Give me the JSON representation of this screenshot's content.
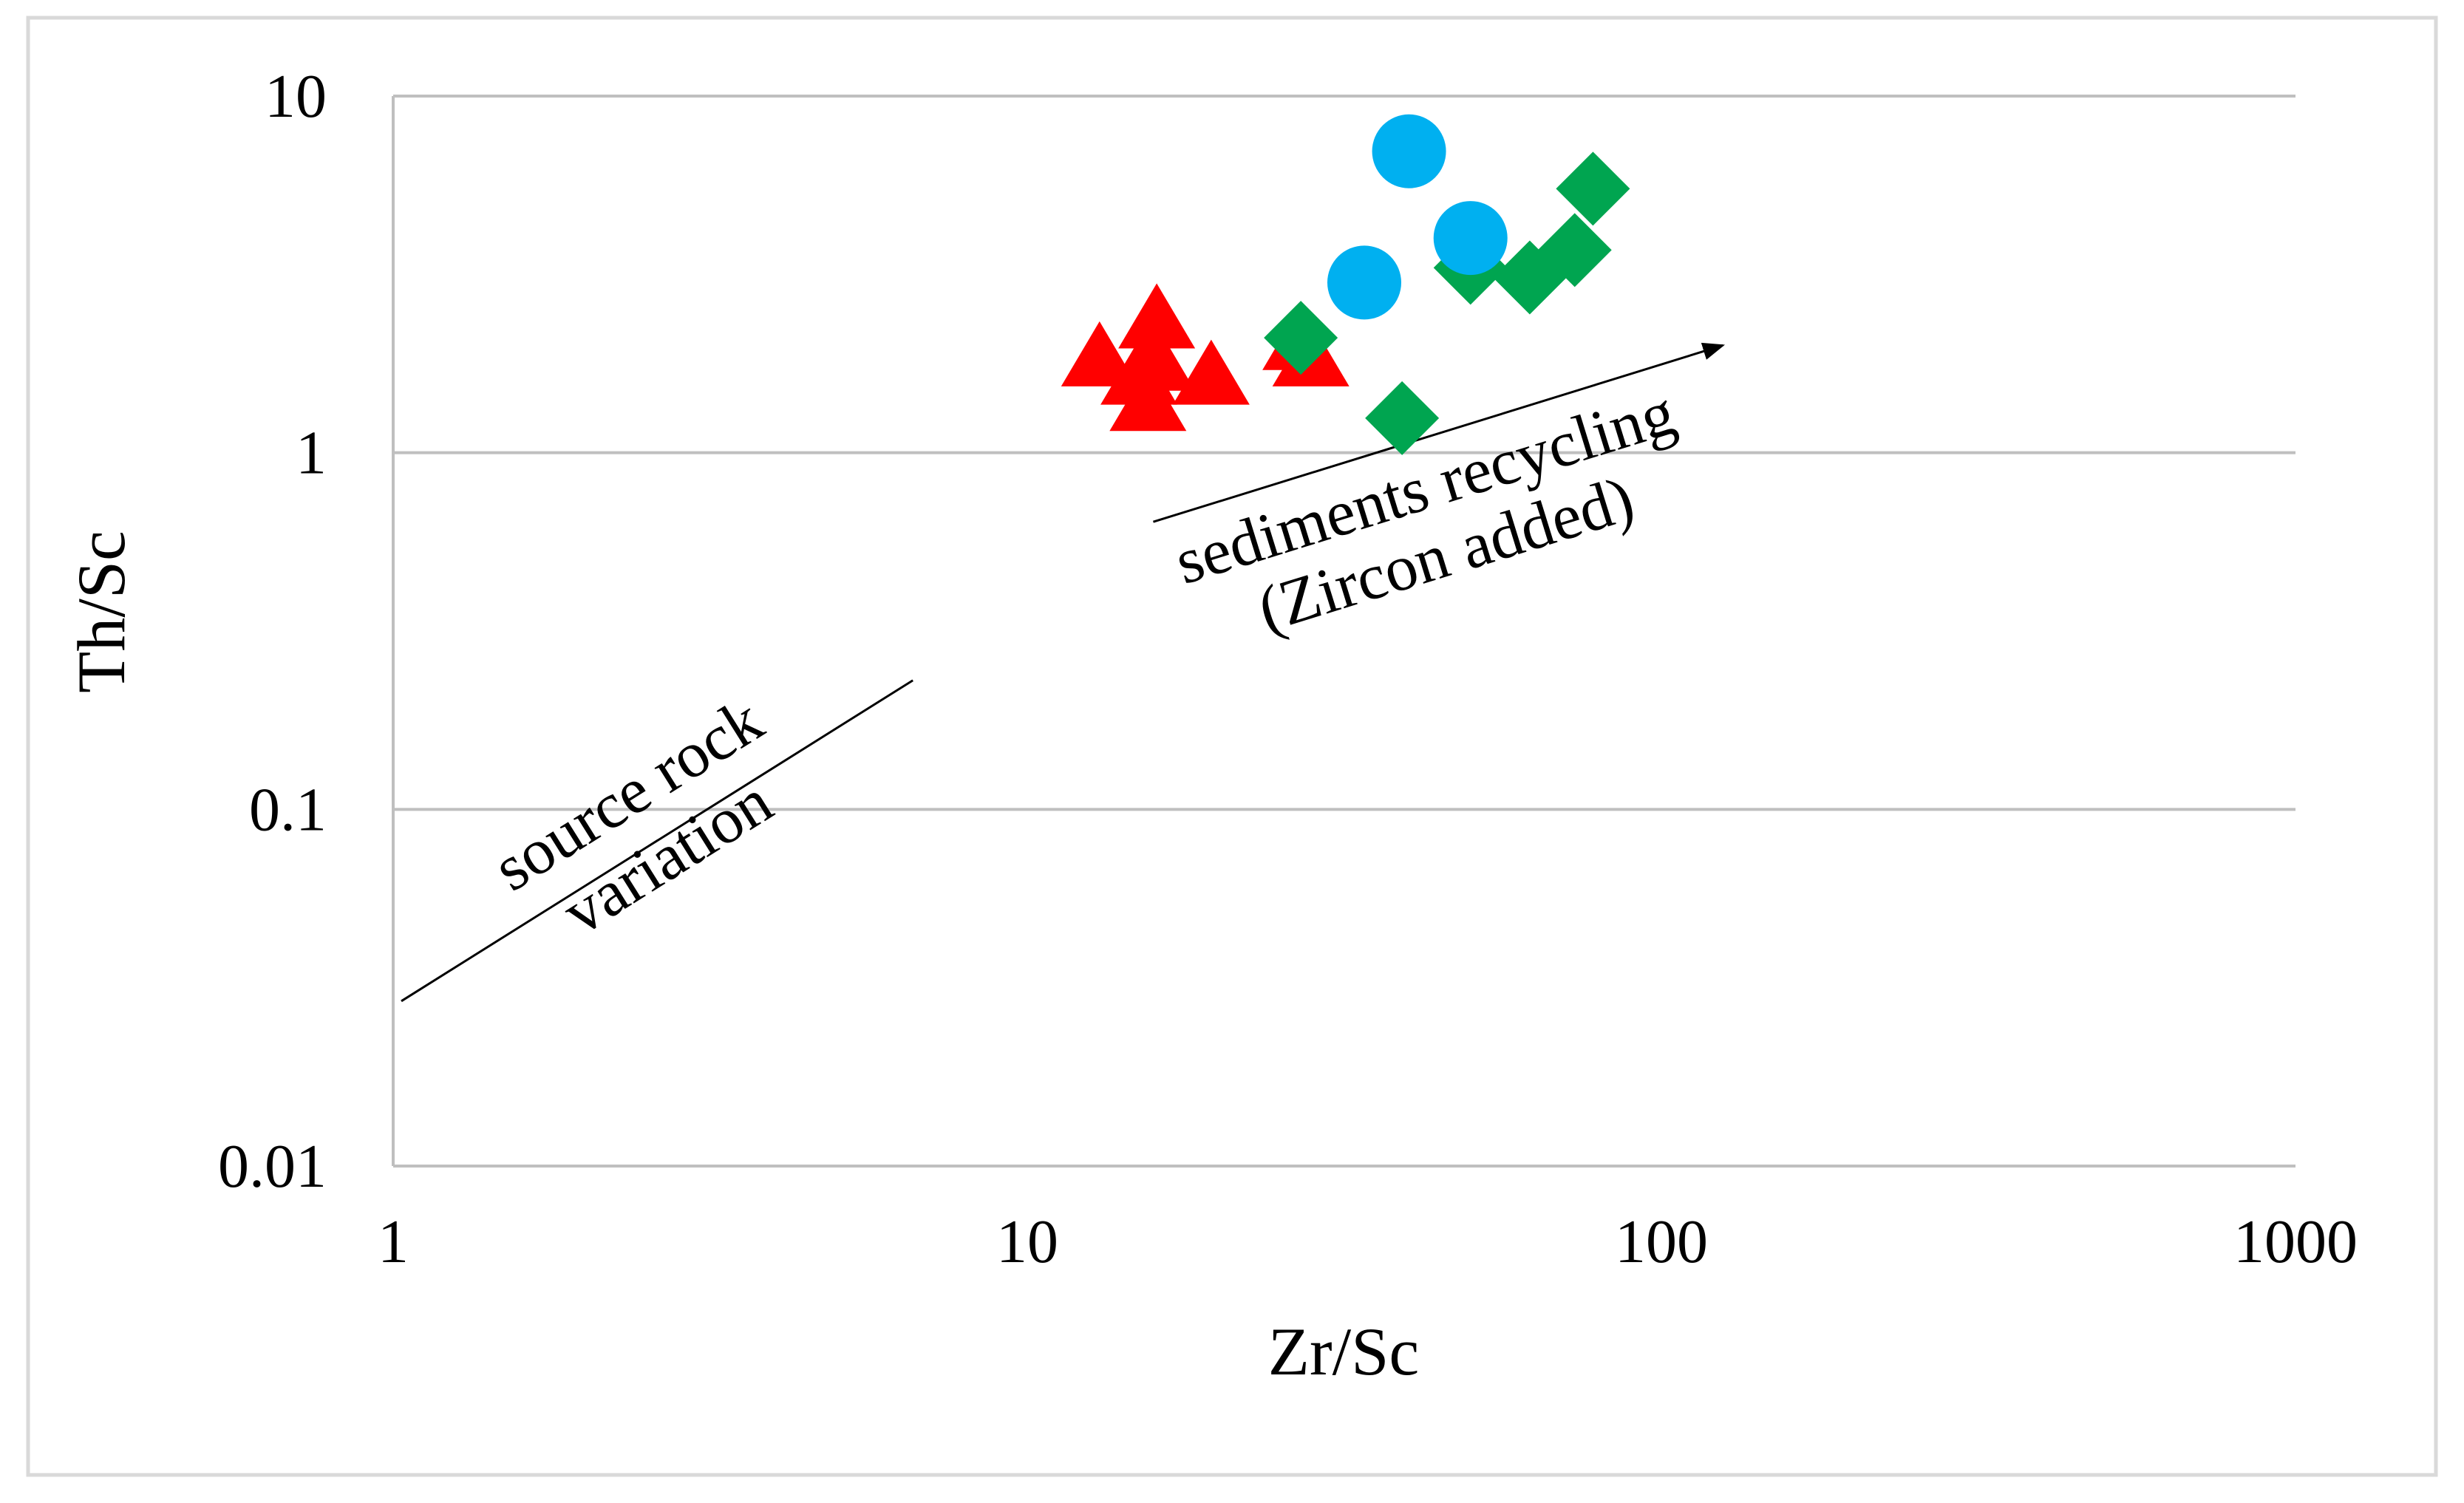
{
  "chart_data": {
    "type": "scatter",
    "title": "",
    "xlabel": "Zr/Sc",
    "ylabel": "Th/Sc",
    "xscale": "log",
    "yscale": "log",
    "xlim": [
      1,
      1000
    ],
    "ylim": [
      0.01,
      10
    ],
    "xticks": [
      1,
      10,
      100,
      1000
    ],
    "xtick_labels": [
      "1",
      "10",
      "100",
      "1000"
    ],
    "yticks": [
      0.01,
      0.1,
      1,
      10
    ],
    "ytick_labels": [
      "0.01",
      "0.1",
      "1",
      "10"
    ],
    "grid": "horizontal",
    "series": [
      {
        "name": "triangles",
        "marker": "triangle",
        "color": "#ff0000",
        "points": [
          {
            "x": 13,
            "y": 1.8
          },
          {
            "x": 15,
            "y": 1.6
          },
          {
            "x": 15.5,
            "y": 1.35
          },
          {
            "x": 16,
            "y": 1.75
          },
          {
            "x": 16,
            "y": 2.3
          },
          {
            "x": 19.5,
            "y": 1.6
          },
          {
            "x": 27,
            "y": 2.0
          },
          {
            "x": 28,
            "y": 1.8
          }
        ]
      },
      {
        "name": "diamonds",
        "marker": "diamond",
        "color": "#00a550",
        "points": [
          {
            "x": 27,
            "y": 2.1
          },
          {
            "x": 39,
            "y": 1.25
          },
          {
            "x": 50,
            "y": 3.3
          },
          {
            "x": 62,
            "y": 3.1
          },
          {
            "x": 73,
            "y": 3.7
          },
          {
            "x": 78,
            "y": 5.5
          }
        ]
      },
      {
        "name": "circles",
        "marker": "circle",
        "color": "#00b0f0",
        "points": [
          {
            "x": 34,
            "y": 3.0
          },
          {
            "x": 40,
            "y": 7.0
          },
          {
            "x": 50,
            "y": 4.0
          }
        ]
      }
    ],
    "annotations": [
      {
        "kind": "line",
        "from": {
          "x": 1.03,
          "y": 0.029
        },
        "to": {
          "x": 6.6,
          "y": 0.23
        },
        "label_lines": [
          "source rock",
          "variation"
        ]
      },
      {
        "kind": "arrow",
        "from": {
          "x": 15.8,
          "y": 0.64
        },
        "to": {
          "x": 125,
          "y": 2.0
        },
        "label_lines": [
          "sediments recycling",
          "(Zircon added)"
        ]
      }
    ]
  }
}
